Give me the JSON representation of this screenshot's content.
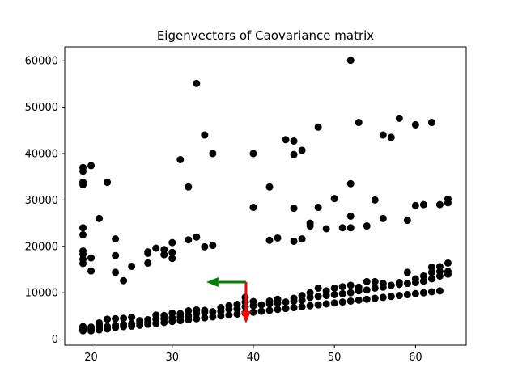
{
  "chart_data": {
    "type": "scatter",
    "title": "Eigenvectors of Caovariance matrix",
    "xlabel": "",
    "ylabel": "",
    "xlim": [
      16.75,
      66.25
    ],
    "ylim": [
      -1300,
      63000
    ],
    "xticks": [
      20,
      30,
      40,
      50,
      60
    ],
    "yticks": [
      0,
      10000,
      20000,
      30000,
      40000,
      50000,
      60000
    ],
    "xtick_labels": [
      "20",
      "30",
      "40",
      "50",
      "60"
    ],
    "ytick_labels": [
      "0",
      "10000",
      "20000",
      "30000",
      "40000",
      "50000",
      "60000"
    ],
    "grid": false,
    "legend": "none",
    "marker_color": "#000000",
    "series": [
      {
        "points": [
          [
            19,
            1800
          ],
          [
            19,
            2100
          ],
          [
            19,
            2400
          ],
          [
            19,
            2700
          ],
          [
            20,
            1800
          ],
          [
            20,
            2200
          ],
          [
            20,
            2600
          ],
          [
            21,
            2000
          ],
          [
            21,
            2500
          ],
          [
            21,
            3000
          ],
          [
            21,
            3500
          ],
          [
            22,
            2200
          ],
          [
            22,
            2700
          ],
          [
            22,
            4300
          ],
          [
            23,
            2500
          ],
          [
            23,
            3000
          ],
          [
            23,
            4400
          ],
          [
            24,
            2700
          ],
          [
            24,
            3200
          ],
          [
            24,
            4500
          ],
          [
            25,
            2800
          ],
          [
            25,
            3300
          ],
          [
            25,
            4700
          ],
          [
            26,
            3000
          ],
          [
            26,
            3500
          ],
          [
            26,
            4000
          ],
          [
            27,
            3200
          ],
          [
            27,
            3700
          ],
          [
            27,
            4200
          ],
          [
            28,
            3400
          ],
          [
            28,
            4300
          ],
          [
            28,
            5200
          ],
          [
            29,
            3600
          ],
          [
            29,
            4400
          ],
          [
            29,
            5100
          ],
          [
            30,
            3800
          ],
          [
            30,
            4600
          ],
          [
            30,
            5600
          ],
          [
            31,
            4000
          ],
          [
            31,
            4800
          ],
          [
            31,
            5500
          ],
          [
            32,
            4200
          ],
          [
            32,
            5000
          ],
          [
            32,
            6100
          ],
          [
            33,
            4400
          ],
          [
            33,
            5500
          ],
          [
            33,
            6300
          ],
          [
            34,
            4600
          ],
          [
            34,
            5800
          ],
          [
            34,
            6200
          ],
          [
            35,
            4800
          ],
          [
            35,
            5900
          ],
          [
            36,
            5000
          ],
          [
            36,
            6000
          ],
          [
            36,
            6800
          ],
          [
            37,
            5200
          ],
          [
            37,
            6400
          ],
          [
            37,
            7200
          ],
          [
            38,
            5400
          ],
          [
            38,
            6500
          ],
          [
            38,
            7500
          ],
          [
            39,
            5600
          ],
          [
            39,
            7000
          ],
          [
            39,
            8000
          ],
          [
            39,
            9000
          ],
          [
            40,
            5800
          ],
          [
            40,
            7200
          ],
          [
            40,
            8100
          ],
          [
            41,
            6000
          ],
          [
            41,
            7400
          ],
          [
            42,
            6200
          ],
          [
            42,
            7600
          ],
          [
            42,
            8200
          ],
          [
            43,
            6400
          ],
          [
            43,
            7800
          ],
          [
            43,
            8600
          ],
          [
            44,
            6600
          ],
          [
            44,
            8000
          ],
          [
            45,
            6800
          ],
          [
            45,
            8200
          ],
          [
            45,
            8800
          ],
          [
            46,
            7000
          ],
          [
            46,
            8400
          ],
          [
            46,
            9400
          ],
          [
            47,
            7200
          ],
          [
            47,
            9000
          ],
          [
            47,
            10000
          ],
          [
            48,
            7400
          ],
          [
            48,
            9200
          ],
          [
            48,
            11000
          ],
          [
            49,
            7600
          ],
          [
            49,
            9400
          ],
          [
            49,
            10400
          ],
          [
            50,
            7800
          ],
          [
            50,
            9600
          ],
          [
            50,
            11000
          ],
          [
            51,
            8000
          ],
          [
            51,
            9800
          ],
          [
            51,
            11300
          ],
          [
            52,
            8200
          ],
          [
            52,
            10000
          ],
          [
            52,
            11600
          ],
          [
            53,
            8400
          ],
          [
            53,
            10400
          ],
          [
            53,
            11200
          ],
          [
            54,
            8600
          ],
          [
            54,
            10600
          ],
          [
            54,
            12400
          ],
          [
            55,
            8800
          ],
          [
            55,
            11000
          ],
          [
            55,
            12400
          ],
          [
            56,
            9000
          ],
          [
            56,
            11200
          ],
          [
            56,
            12000
          ],
          [
            57,
            9200
          ],
          [
            57,
            11600
          ],
          [
            58,
            9400
          ],
          [
            58,
            11800
          ],
          [
            58,
            12200
          ],
          [
            59,
            9600
          ],
          [
            59,
            12000
          ],
          [
            59,
            14400
          ],
          [
            60,
            9800
          ],
          [
            60,
            12200
          ],
          [
            60,
            13000
          ],
          [
            61,
            10000
          ],
          [
            61,
            12500
          ],
          [
            61,
            13600
          ],
          [
            62,
            10200
          ],
          [
            62,
            13000
          ],
          [
            62,
            14400
          ],
          [
            62,
            15500
          ],
          [
            63,
            10400
          ],
          [
            63,
            13600
          ],
          [
            63,
            14600
          ],
          [
            63,
            15600
          ],
          [
            64,
            14000
          ],
          [
            64,
            14600
          ],
          [
            64,
            16400
          ],
          [
            19,
            16300
          ],
          [
            19,
            17200
          ],
          [
            19,
            18300
          ],
          [
            19,
            19000
          ],
          [
            19,
            22500
          ],
          [
            19,
            24000
          ],
          [
            19,
            33300
          ],
          [
            19,
            33800
          ],
          [
            19,
            36200
          ],
          [
            19,
            37000
          ],
          [
            20,
            14700
          ],
          [
            20,
            17500
          ],
          [
            20,
            37400
          ],
          [
            21,
            26000
          ],
          [
            22,
            33800
          ],
          [
            23,
            14400
          ],
          [
            23,
            18000
          ],
          [
            23,
            21600
          ],
          [
            24,
            12600
          ],
          [
            25,
            15700
          ],
          [
            27,
            16400
          ],
          [
            27,
            18500
          ],
          [
            27,
            18800
          ],
          [
            28,
            19600
          ],
          [
            29,
            18200
          ],
          [
            29,
            19300
          ],
          [
            30,
            17400
          ],
          [
            30,
            18700
          ],
          [
            30,
            20800
          ],
          [
            31,
            38700
          ],
          [
            32,
            21400
          ],
          [
            32,
            32800
          ],
          [
            33,
            22000
          ],
          [
            33,
            55100
          ],
          [
            34,
            19900
          ],
          [
            34,
            44000
          ],
          [
            35,
            20200
          ],
          [
            35,
            40000
          ],
          [
            40,
            40000
          ],
          [
            40,
            28400
          ],
          [
            42,
            21300
          ],
          [
            42,
            32800
          ],
          [
            43,
            21800
          ],
          [
            44,
            43000
          ],
          [
            45,
            21100
          ],
          [
            45,
            28200
          ],
          [
            45,
            39800
          ],
          [
            45,
            42700
          ],
          [
            46,
            21600
          ],
          [
            46,
            40700
          ],
          [
            47,
            24400
          ],
          [
            47,
            25000
          ],
          [
            48,
            28400
          ],
          [
            48,
            45700
          ],
          [
            49,
            23800
          ],
          [
            50,
            30300
          ],
          [
            51,
            24000
          ],
          [
            52,
            24000
          ],
          [
            52,
            26500
          ],
          [
            52,
            33500
          ],
          [
            52,
            60100
          ],
          [
            53,
            46700
          ],
          [
            54,
            24400
          ],
          [
            55,
            30000
          ],
          [
            56,
            26000
          ],
          [
            56,
            44000
          ],
          [
            57,
            43500
          ],
          [
            58,
            47600
          ],
          [
            59,
            25600
          ],
          [
            60,
            28800
          ],
          [
            60,
            46200
          ],
          [
            61,
            29000
          ],
          [
            62,
            46700
          ],
          [
            63,
            29000
          ],
          [
            64,
            29400
          ],
          [
            64,
            30200
          ]
        ]
      }
    ],
    "arrows": [
      {
        "color": "#008000",
        "x0": 39.1,
        "y0": 12300,
        "x1": 34.2,
        "y1": 12300
      },
      {
        "color": "#ff0000",
        "x0": 39.1,
        "y0": 12300,
        "x1": 39.1,
        "y1": 3400
      }
    ]
  }
}
